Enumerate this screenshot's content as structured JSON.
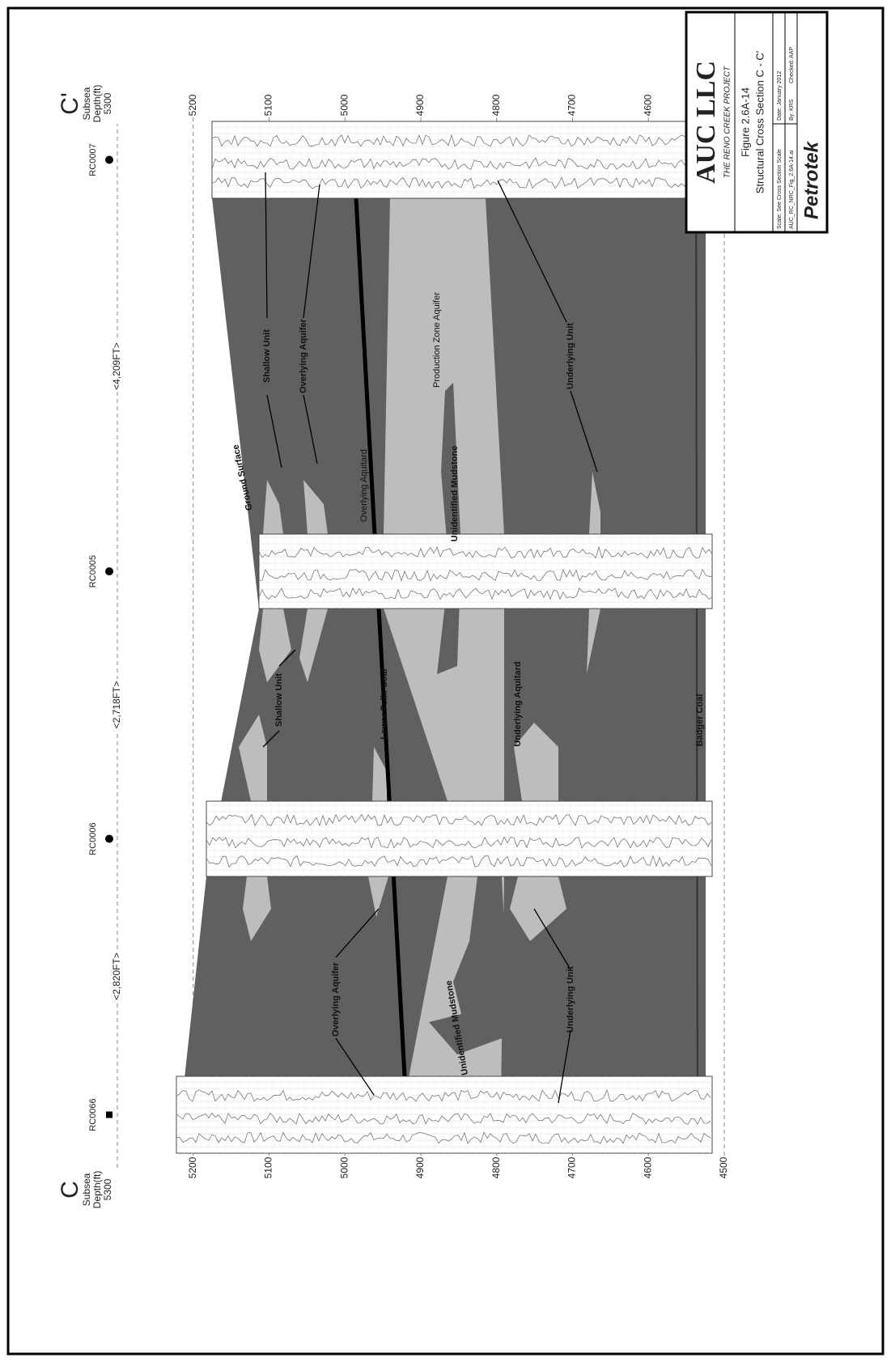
{
  "section": {
    "start_label": "C",
    "end_label": "C'",
    "axis_label_1": "Subsea",
    "axis_label_2": "Depth(ft)",
    "top_depth": "5300",
    "left_ticks": [
      5200,
      5100,
      5000,
      4900,
      4800,
      4700,
      4600,
      4500
    ],
    "right_ticks": [
      5200,
      5100,
      5000,
      4900,
      4800,
      4700,
      4600
    ]
  },
  "wells": [
    {
      "name": "RC0066"
    },
    {
      "name": "RC0006"
    },
    {
      "name": "RC0005"
    },
    {
      "name": "RC0007"
    }
  ],
  "distances": [
    "<2,820FT>",
    "<2,718FT>",
    "<4,209FT>"
  ],
  "annotations": [
    "Ground Surface",
    "Shallow Unit",
    "Overlying Aquifer",
    "Production Zone Aquifer",
    "Underlying Unit",
    "Overlying Aquitard",
    "Unidentified Mudstone",
    "Shallow Unit",
    "Lower Felix Coal",
    "Underlying Aquitard",
    "Badger Coal",
    "Overlying Aquifer",
    "Unidentified Mudstone",
    "Underlying Unit"
  ],
  "title_block": {
    "company": "AUC LLC",
    "project": "THE RENO CREEK PROJECT",
    "figure": "Figure 2.6A-14",
    "caption": "Structural Cross Section C - C'",
    "scale": "Scale: See Cross Section Scale",
    "date": "Date: January 2012",
    "file": "AUC_RC_NRC_Fig_2.6A-14.ai",
    "by": "By: KRS",
    "checked": "Checked: AAP",
    "firm": "Petrotek"
  }
}
